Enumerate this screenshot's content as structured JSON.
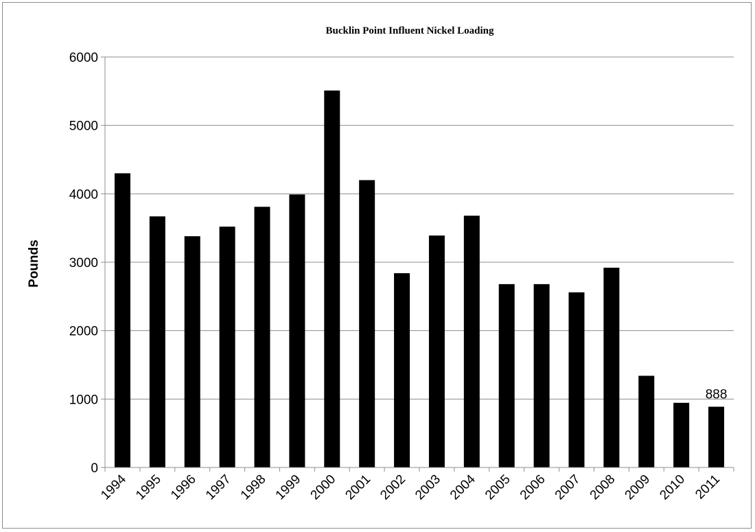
{
  "chart_data": {
    "type": "bar",
    "title": "Bucklin Point Influent Nickel Loading",
    "xlabel": "",
    "ylabel": "Pounds",
    "ylim": [
      0,
      6000
    ],
    "yticks": [
      0,
      1000,
      2000,
      3000,
      4000,
      5000,
      6000
    ],
    "grid": true,
    "legend": "none",
    "bar_color": "#000000",
    "categories": [
      "1994",
      "1995",
      "1996",
      "1997",
      "1998",
      "1999",
      "2000",
      "2001",
      "2002",
      "2003",
      "2004",
      "2005",
      "2006",
      "2007",
      "2008",
      "2009",
      "2010",
      "2011"
    ],
    "values": [
      4300,
      3670,
      3380,
      3520,
      3810,
      3990,
      5510,
      4200,
      2840,
      3390,
      3680,
      2680,
      2680,
      2560,
      2920,
      1340,
      945,
      888
    ],
    "annotations": [
      {
        "category": "2011",
        "text": "888"
      }
    ]
  }
}
